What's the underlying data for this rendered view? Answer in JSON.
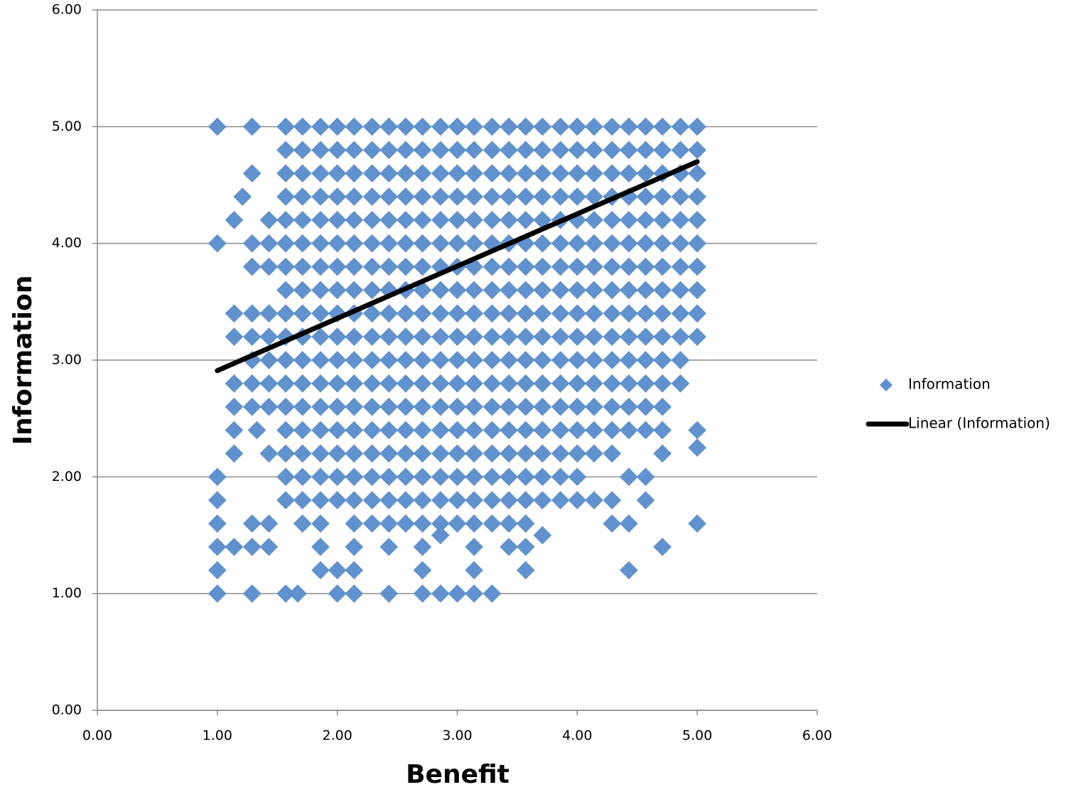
{
  "chart_data": {
    "type": "scatter",
    "xlabel": "Benefit",
    "ylabel": "Information",
    "xlim": [
      0,
      6
    ],
    "ylim": [
      0,
      6
    ],
    "xticks": [
      {
        "value": 0,
        "label": "0.00"
      },
      {
        "value": 1,
        "label": "1.00"
      },
      {
        "value": 2,
        "label": "2.00"
      },
      {
        "value": 3,
        "label": "3.00"
      },
      {
        "value": 4,
        "label": "4.00"
      },
      {
        "value": 5,
        "label": "5.00"
      },
      {
        "value": 6,
        "label": "6.00"
      }
    ],
    "yticks": [
      {
        "value": 0,
        "label": "0.00"
      },
      {
        "value": 1,
        "label": "1.00"
      },
      {
        "value": 2,
        "label": "2.00"
      },
      {
        "value": 3,
        "label": "3.00"
      },
      {
        "value": 4,
        "label": "4.00"
      },
      {
        "value": 5,
        "label": "5.00"
      },
      {
        "value": 6,
        "label": "6.00"
      }
    ],
    "ygrid": true,
    "legend": "right",
    "series": [
      {
        "name": "Information",
        "type": "scatter",
        "color": "#5f92cf",
        "x": [
          1.0,
          1.29,
          1.57,
          1.71,
          1.86,
          2.0,
          2.14,
          2.29,
          2.43,
          2.57,
          2.71,
          2.86,
          3.0,
          3.14,
          3.29,
          3.43,
          3.57,
          3.71,
          3.86,
          4.0,
          4.14,
          4.29,
          4.43,
          4.57,
          4.71,
          4.86,
          5.0,
          1.57,
          1.71,
          1.86,
          2.0,
          2.14,
          2.29,
          2.43,
          2.57,
          2.71,
          2.86,
          3.0,
          3.14,
          3.29,
          3.43,
          3.57,
          3.71,
          3.86,
          4.0,
          4.14,
          4.29,
          4.43,
          4.57,
          4.71,
          4.86,
          5.0,
          1.29,
          1.57,
          1.71,
          1.86,
          2.0,
          2.14,
          2.29,
          2.43,
          2.57,
          2.71,
          2.86,
          3.0,
          3.14,
          3.29,
          3.43,
          3.57,
          3.71,
          3.86,
          4.0,
          4.14,
          4.29,
          4.43,
          4.57,
          4.71,
          4.86,
          5.0,
          1.21,
          1.57,
          1.71,
          1.86,
          2.0,
          2.14,
          2.29,
          2.43,
          2.57,
          2.71,
          2.86,
          3.0,
          3.14,
          3.29,
          3.43,
          3.57,
          3.71,
          3.86,
          4.0,
          4.14,
          4.29,
          4.43,
          4.57,
          4.71,
          4.86,
          5.0,
          1.14,
          1.43,
          1.57,
          1.71,
          1.86,
          2.0,
          2.14,
          2.29,
          2.43,
          2.57,
          2.71,
          2.86,
          3.0,
          3.14,
          3.29,
          3.43,
          3.57,
          3.71,
          3.86,
          4.0,
          4.14,
          4.29,
          4.43,
          4.57,
          4.71,
          4.86,
          5.0,
          1.0,
          1.29,
          1.43,
          1.57,
          1.71,
          1.86,
          2.0,
          2.14,
          2.29,
          2.43,
          2.57,
          2.71,
          2.86,
          3.0,
          3.14,
          3.29,
          3.43,
          3.57,
          3.71,
          3.86,
          4.0,
          4.14,
          4.29,
          4.43,
          4.57,
          4.71,
          4.86,
          5.0,
          1.29,
          1.43,
          1.57,
          1.71,
          1.86,
          2.0,
          2.14,
          2.29,
          2.43,
          2.57,
          2.71,
          2.86,
          3.0,
          3.14,
          3.29,
          3.43,
          3.57,
          3.71,
          3.86,
          4.0,
          4.14,
          4.29,
          4.43,
          4.57,
          4.71,
          4.86,
          5.0,
          1.57,
          1.71,
          1.86,
          2.0,
          2.14,
          2.29,
          2.43,
          2.57,
          2.71,
          2.86,
          3.0,
          3.14,
          3.29,
          3.43,
          3.57,
          3.71,
          3.86,
          4.0,
          4.14,
          4.29,
          4.43,
          4.57,
          4.71,
          4.86,
          5.0,
          1.14,
          1.29,
          1.43,
          1.57,
          1.71,
          1.86,
          2.0,
          2.14,
          2.29,
          2.43,
          2.57,
          2.71,
          2.86,
          3.0,
          3.14,
          3.29,
          3.43,
          3.57,
          3.71,
          3.86,
          4.0,
          4.14,
          4.29,
          4.43,
          4.57,
          4.71,
          4.86,
          5.0,
          1.14,
          1.29,
          1.43,
          1.57,
          1.71,
          1.86,
          2.0,
          2.14,
          2.29,
          2.43,
          2.57,
          2.71,
          2.86,
          3.0,
          3.14,
          3.29,
          3.43,
          3.57,
          3.71,
          3.86,
          4.0,
          4.14,
          4.29,
          4.43,
          4.57,
          4.71,
          4.86,
          5.0,
          1.29,
          1.43,
          1.57,
          1.71,
          1.86,
          2.0,
          2.14,
          2.29,
          2.43,
          2.57,
          2.71,
          2.86,
          3.0,
          3.14,
          3.29,
          3.43,
          3.57,
          3.71,
          3.86,
          4.0,
          4.14,
          4.29,
          4.43,
          4.57,
          4.71,
          4.86,
          1.14,
          1.29,
          1.43,
          1.57,
          1.71,
          1.86,
          2.0,
          2.14,
          2.29,
          2.43,
          2.57,
          2.71,
          2.86,
          3.0,
          3.14,
          3.29,
          3.43,
          3.57,
          3.71,
          3.86,
          4.0,
          4.14,
          4.29,
          4.43,
          4.57,
          4.71,
          4.86,
          1.14,
          1.29,
          1.43,
          1.57,
          1.71,
          1.86,
          2.0,
          2.14,
          2.29,
          2.43,
          2.57,
          2.71,
          2.86,
          3.0,
          3.14,
          3.29,
          3.43,
          3.57,
          3.71,
          3.86,
          4.0,
          4.14,
          4.29,
          4.43,
          4.57,
          4.71,
          1.14,
          1.33,
          1.57,
          1.71,
          1.86,
          2.0,
          2.14,
          2.29,
          2.43,
          2.57,
          2.71,
          2.86,
          3.0,
          3.14,
          3.29,
          3.43,
          3.57,
          3.71,
          3.86,
          4.0,
          4.14,
          4.29,
          4.43,
          4.57,
          4.71,
          5.0,
          1.14,
          1.43,
          1.57,
          1.71,
          1.86,
          2.0,
          2.14,
          2.29,
          2.43,
          2.57,
          2.71,
          2.86,
          3.0,
          3.14,
          3.29,
          3.43,
          3.57,
          3.71,
          3.86,
          4.0,
          4.14,
          4.29,
          4.71,
          1.0,
          1.57,
          1.71,
          1.86,
          2.0,
          2.14,
          2.29,
          2.43,
          2.57,
          2.71,
          2.86,
          3.0,
          3.14,
          3.29,
          3.43,
          3.57,
          3.71,
          3.86,
          4.0,
          4.43,
          4.57,
          1.0,
          1.57,
          1.71,
          1.86,
          2.0,
          2.14,
          2.29,
          2.43,
          2.57,
          2.71,
          2.86,
          3.0,
          3.14,
          3.29,
          3.43,
          3.57,
          3.71,
          3.86,
          4.0,
          4.14,
          4.29,
          4.57,
          1.0,
          1.29,
          1.43,
          1.71,
          1.86,
          2.14,
          2.29,
          2.43,
          2.57,
          2.71,
          2.86,
          3.0,
          3.14,
          3.29,
          3.43,
          3.57,
          4.29,
          4.43,
          5.0,
          1.0,
          1.14,
          1.29,
          1.43,
          1.86,
          2.14,
          2.43,
          2.71,
          3.14,
          3.43,
          3.57,
          4.71,
          1.0,
          1.86,
          2.0,
          2.14,
          2.71,
          3.14,
          3.57,
          4.43,
          1.0,
          1.29,
          1.57,
          1.67,
          2.0,
          2.14,
          2.43,
          2.71,
          2.86,
          3.0,
          3.14,
          3.29,
          5.0,
          3.71,
          2.86
        ],
        "values": [
          5,
          5,
          5,
          5,
          5,
          5,
          5,
          5,
          5,
          5,
          5,
          5,
          5,
          5,
          5,
          5,
          5,
          5,
          5,
          5,
          5,
          5,
          5,
          5,
          5,
          5,
          5,
          4.8,
          4.8,
          4.8,
          4.8,
          4.8,
          4.8,
          4.8,
          4.8,
          4.8,
          4.8,
          4.8,
          4.8,
          4.8,
          4.8,
          4.8,
          4.8,
          4.8,
          4.8,
          4.8,
          4.8,
          4.8,
          4.8,
          4.8,
          4.8,
          4.8,
          4.6,
          4.6,
          4.6,
          4.6,
          4.6,
          4.6,
          4.6,
          4.6,
          4.6,
          4.6,
          4.6,
          4.6,
          4.6,
          4.6,
          4.6,
          4.6,
          4.6,
          4.6,
          4.6,
          4.6,
          4.6,
          4.6,
          4.6,
          4.6,
          4.6,
          4.6,
          4.4,
          4.4,
          4.4,
          4.4,
          4.4,
          4.4,
          4.4,
          4.4,
          4.4,
          4.4,
          4.4,
          4.4,
          4.4,
          4.4,
          4.4,
          4.4,
          4.4,
          4.4,
          4.4,
          4.4,
          4.4,
          4.4,
          4.4,
          4.4,
          4.4,
          4.4,
          4.2,
          4.2,
          4.2,
          4.2,
          4.2,
          4.2,
          4.2,
          4.2,
          4.2,
          4.2,
          4.2,
          4.2,
          4.2,
          4.2,
          4.2,
          4.2,
          4.2,
          4.2,
          4.2,
          4.2,
          4.2,
          4.2,
          4.2,
          4.2,
          4.2,
          4.2,
          4.2,
          4,
          4,
          4,
          4,
          4,
          4,
          4,
          4,
          4,
          4,
          4,
          4,
          4,
          4,
          4,
          4,
          4,
          4,
          4,
          4,
          4,
          4,
          4,
          4,
          4,
          4,
          4,
          4,
          3.8,
          3.8,
          3.8,
          3.8,
          3.8,
          3.8,
          3.8,
          3.8,
          3.8,
          3.8,
          3.8,
          3.8,
          3.8,
          3.8,
          3.8,
          3.8,
          3.8,
          3.8,
          3.8,
          3.8,
          3.8,
          3.8,
          3.8,
          3.8,
          3.8,
          3.8,
          3.8,
          3.6,
          3.6,
          3.6,
          3.6,
          3.6,
          3.6,
          3.6,
          3.6,
          3.6,
          3.6,
          3.6,
          3.6,
          3.6,
          3.6,
          3.6,
          3.6,
          3.6,
          3.6,
          3.6,
          3.6,
          3.6,
          3.6,
          3.6,
          3.6,
          3.6,
          3.4,
          3.4,
          3.4,
          3.4,
          3.4,
          3.4,
          3.4,
          3.4,
          3.4,
          3.4,
          3.4,
          3.4,
          3.4,
          3.4,
          3.4,
          3.4,
          3.4,
          3.4,
          3.4,
          3.4,
          3.4,
          3.4,
          3.4,
          3.4,
          3.4,
          3.4,
          3.4,
          3.4,
          3.2,
          3.2,
          3.2,
          3.2,
          3.2,
          3.2,
          3.2,
          3.2,
          3.2,
          3.2,
          3.2,
          3.2,
          3.2,
          3.2,
          3.2,
          3.2,
          3.2,
          3.2,
          3.2,
          3.2,
          3.2,
          3.2,
          3.2,
          3.2,
          3.2,
          3.2,
          3.2,
          3.2,
          3,
          3,
          3,
          3,
          3,
          3,
          3,
          3,
          3,
          3,
          3,
          3,
          3,
          3,
          3,
          3,
          3,
          3,
          3,
          3,
          3,
          3,
          3,
          3,
          3,
          3,
          2.8,
          2.8,
          2.8,
          2.8,
          2.8,
          2.8,
          2.8,
          2.8,
          2.8,
          2.8,
          2.8,
          2.8,
          2.8,
          2.8,
          2.8,
          2.8,
          2.8,
          2.8,
          2.8,
          2.8,
          2.8,
          2.8,
          2.8,
          2.8,
          2.8,
          2.8,
          2.8,
          2.6,
          2.6,
          2.6,
          2.6,
          2.6,
          2.6,
          2.6,
          2.6,
          2.6,
          2.6,
          2.6,
          2.6,
          2.6,
          2.6,
          2.6,
          2.6,
          2.6,
          2.6,
          2.6,
          2.6,
          2.6,
          2.6,
          2.6,
          2.6,
          2.6,
          2.6,
          2.4,
          2.4,
          2.4,
          2.4,
          2.4,
          2.4,
          2.4,
          2.4,
          2.4,
          2.4,
          2.4,
          2.4,
          2.4,
          2.4,
          2.4,
          2.4,
          2.4,
          2.4,
          2.4,
          2.4,
          2.4,
          2.4,
          2.4,
          2.4,
          2.4,
          2.4,
          2.2,
          2.2,
          2.2,
          2.2,
          2.2,
          2.2,
          2.2,
          2.2,
          2.2,
          2.2,
          2.2,
          2.2,
          2.2,
          2.2,
          2.2,
          2.2,
          2.2,
          2.2,
          2.2,
          2.2,
          2.2,
          2.2,
          2.2,
          2,
          2,
          2,
          2,
          2,
          2,
          2,
          2,
          2,
          2,
          2,
          2,
          2,
          2,
          2,
          2,
          2,
          2,
          2,
          2,
          2,
          1.8,
          1.8,
          1.8,
          1.8,
          1.8,
          1.8,
          1.8,
          1.8,
          1.8,
          1.8,
          1.8,
          1.8,
          1.8,
          1.8,
          1.8,
          1.8,
          1.8,
          1.8,
          1.8,
          1.8,
          1.8,
          1.8,
          1.6,
          1.6,
          1.6,
          1.6,
          1.6,
          1.6,
          1.6,
          1.6,
          1.6,
          1.6,
          1.6,
          1.6,
          1.6,
          1.6,
          1.6,
          1.6,
          1.6,
          1.6,
          1.6,
          1.4,
          1.4,
          1.4,
          1.4,
          1.4,
          1.4,
          1.4,
          1.4,
          1.4,
          1.4,
          1.4,
          1.4,
          1.2,
          1.2,
          1.2,
          1.2,
          1.2,
          1.2,
          1.2,
          1.2,
          1,
          1,
          1,
          1,
          1,
          1,
          1,
          1,
          1,
          1,
          1,
          1,
          2.25,
          1.5,
          1.5
        ]
      },
      {
        "name": "Linear (Information)",
        "type": "line",
        "color": "#000000",
        "x": [
          1,
          5
        ],
        "values": [
          2.91,
          4.7
        ]
      }
    ]
  }
}
